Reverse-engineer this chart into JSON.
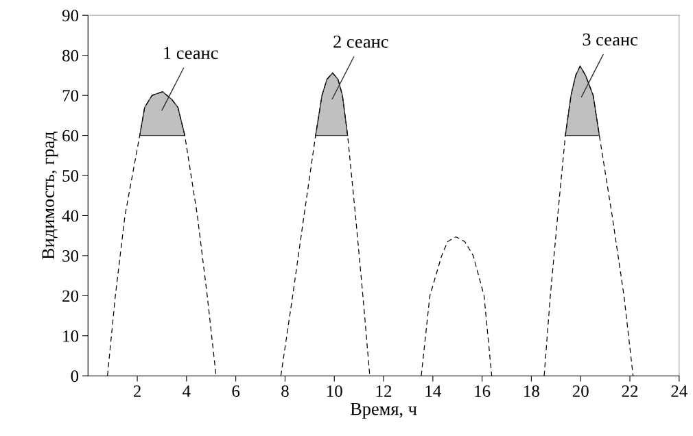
{
  "chart_data": {
    "type": "line",
    "xlabel": "Время, ч",
    "ylabel": "Видимость, град",
    "xlim": [
      0,
      24
    ],
    "ylim": [
      0,
      90
    ],
    "xticks": [
      2,
      4,
      6,
      8,
      10,
      12,
      14,
      16,
      18,
      20,
      22,
      24
    ],
    "yticks": [
      0,
      10,
      20,
      30,
      40,
      50,
      60,
      70,
      80,
      90
    ],
    "grid": false,
    "legend": false,
    "marker": "none",
    "line_style": "dashed",
    "series": [
      {
        "color": "#000000",
        "x": [
          0.79,
          1.11,
          1.5,
          2.1,
          2.3,
          2.6,
          3.03,
          3.4,
          3.65,
          3.93,
          4.44,
          4.84,
          5.2
        ],
        "values": [
          0,
          20,
          40,
          60,
          67,
          70,
          70.9,
          69,
          67,
          60,
          40,
          20,
          0
        ]
      },
      {
        "color": "#000000",
        "x": [
          7.83,
          8.31,
          8.77,
          9.24,
          9.5,
          9.7,
          9.93,
          10.15,
          10.33,
          10.54,
          10.86,
          11.16,
          11.44
        ],
        "values": [
          0,
          20,
          40,
          60,
          70,
          74,
          75.6,
          74,
          70,
          60,
          40,
          20,
          0
        ]
      },
      {
        "color": "#000000",
        "x": [
          13.53,
          13.88,
          14.36,
          14.6,
          14.94,
          15.3,
          15.64,
          16.08,
          16.39
        ],
        "values": [
          0,
          20,
          30,
          33.5,
          34.7,
          33.5,
          30,
          20,
          0
        ]
      },
      {
        "color": "#000000",
        "x": [
          18.52,
          18.77,
          19.07,
          19.38,
          19.61,
          19.8,
          19.98,
          20.2,
          20.51,
          20.76,
          21.28,
          21.76,
          22.13
        ],
        "values": [
          0,
          20,
          40,
          60,
          70,
          75,
          77.3,
          75,
          70,
          60,
          40,
          20,
          0
        ]
      },
      {
        "type": "area",
        "color": "#c0c0c0",
        "x": [
          2.1,
          2.3,
          2.6,
          3.03,
          3.4,
          3.65,
          3.93
        ],
        "values": [
          60,
          67,
          70,
          70.9,
          69,
          67,
          60
        ]
      },
      {
        "type": "area",
        "color": "#c0c0c0",
        "x": [
          9.24,
          9.5,
          9.7,
          9.93,
          10.15,
          10.33,
          10.54
        ],
        "values": [
          60,
          70,
          74,
          75.6,
          74,
          70,
          60
        ]
      },
      {
        "type": "area",
        "color": "#c0c0c0",
        "x": [
          19.38,
          19.61,
          19.8,
          19.98,
          20.2,
          20.51,
          20.76
        ],
        "values": [
          60,
          70,
          75,
          77.3,
          75,
          70,
          60
        ]
      }
    ],
    "annotations": [
      "1 сеанс",
      "2 сеанс",
      "3 сеанс"
    ]
  }
}
